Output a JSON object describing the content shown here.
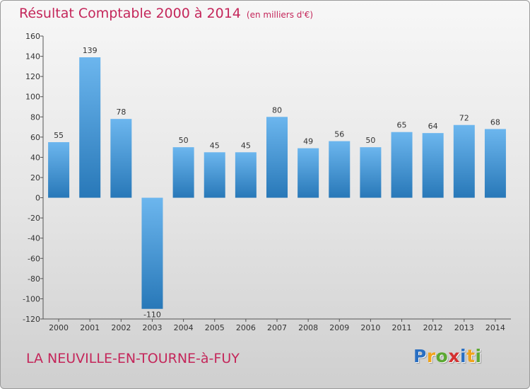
{
  "chart_data": {
    "type": "bar",
    "title": "Résultat Comptable 2000 à 2014",
    "subtitle": "(en milliers d'€)",
    "categories": [
      "2000",
      "2001",
      "2002",
      "2003",
      "2004",
      "2005",
      "2006",
      "2007",
      "2008",
      "2009",
      "2010",
      "2011",
      "2012",
      "2013",
      "2014"
    ],
    "values": [
      55,
      139,
      78,
      -110,
      50,
      45,
      45,
      80,
      49,
      56,
      50,
      65,
      64,
      72,
      68
    ],
    "ylim": [
      -120,
      160
    ],
    "yticks": [
      -120,
      -100,
      -80,
      -60,
      -40,
      -20,
      0,
      20,
      40,
      60,
      80,
      100,
      120,
      140,
      160
    ],
    "xlabel": "",
    "ylabel": "",
    "grid": false,
    "colors": {
      "bar_light": "#6cb6ee",
      "bar_dark": "#2878b8",
      "title": "#c4265a"
    }
  },
  "footer": {
    "commune": "LA NEUVILLE-EN-TOURNE-à-FUY"
  },
  "brand": {
    "letters": [
      "P",
      "r",
      "o",
      "x",
      "i",
      "t",
      "i"
    ],
    "colors": [
      "#2a6fc2",
      "#f0a31c",
      "#5ba832",
      "#d43131",
      "#2a6fc2",
      "#f0a31c",
      "#5ba832"
    ]
  }
}
